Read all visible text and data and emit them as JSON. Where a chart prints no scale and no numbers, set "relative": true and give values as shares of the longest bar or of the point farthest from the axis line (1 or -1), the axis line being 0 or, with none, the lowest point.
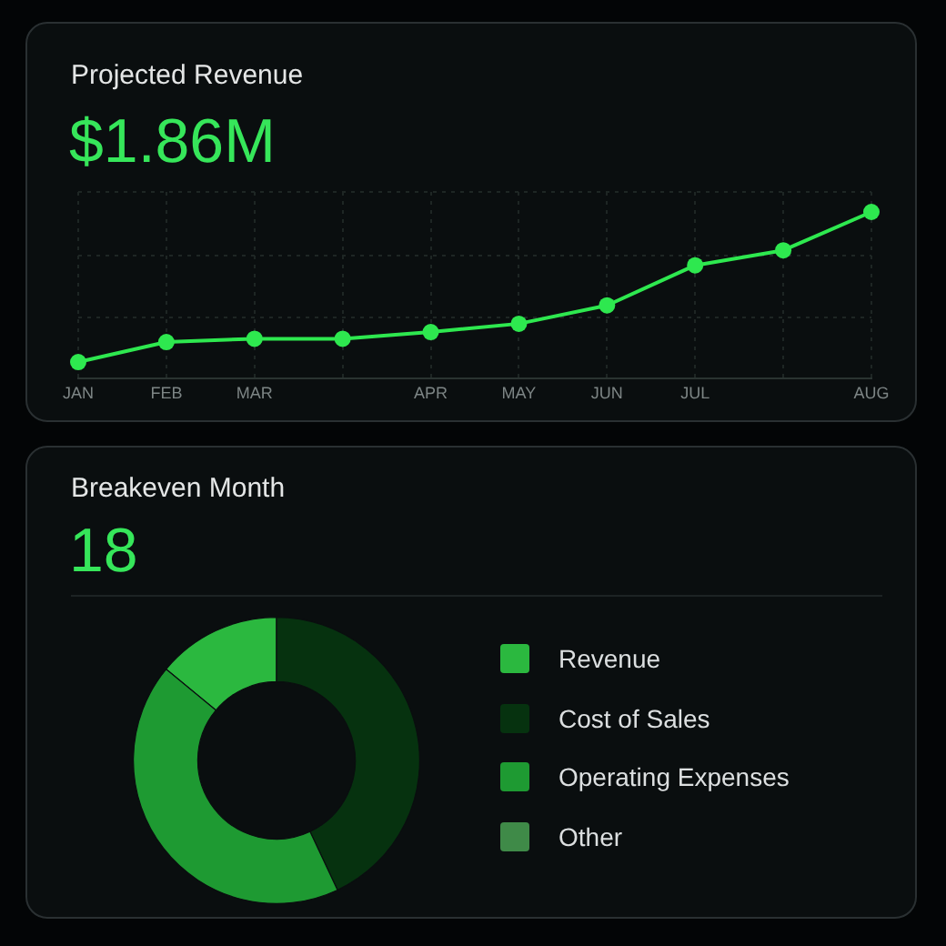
{
  "chart_data": [
    {
      "type": "line",
      "title": "Projected Revenue",
      "annotations": [
        "$1.86M"
      ],
      "relative": true,
      "categories": [
        "JAN",
        "FEB",
        "MAR",
        null,
        "APR",
        "MAY",
        "JUN",
        "JUL",
        null,
        "AUG"
      ],
      "series": [
        {
          "color": "#2ee84f",
          "values": [
            0.1,
            0.22,
            0.24,
            0.24,
            0.28,
            0.33,
            0.44,
            0.68,
            0.77,
            1.0
          ]
        }
      ],
      "marker": "circle",
      "grid": true,
      "legend": false
    },
    {
      "type": "donut",
      "title": "Breakeven Month",
      "annotations": [
        "18"
      ],
      "categories": [
        "Revenue",
        "Cost of Sales",
        "Operating Expenses",
        "Other"
      ],
      "values": [
        14,
        43,
        43,
        0
      ],
      "colors": [
        "#2bb83f",
        "#06320f",
        "#1e9a32",
        "#3f8a48"
      ],
      "legend": "right"
    }
  ]
}
